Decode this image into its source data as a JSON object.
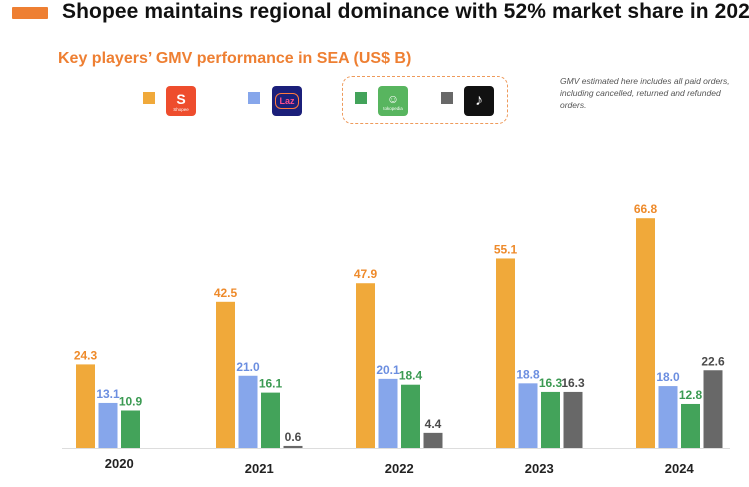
{
  "header": {
    "title": "Shopee maintains regional dominance with 52% market share in 202",
    "subtitle": "Key players’ GMV performance in SEA (US$ B)",
    "note": "GMV estimated here includes all paid orders, including cancelled, returned and refunded orders."
  },
  "legend": [
    {
      "name": "Shopee",
      "icon": "shopee-logo",
      "color": "#f0a93a",
      "logo_bg": "#ee4d2d",
      "logo_text": "S",
      "logo_sub": "Shopee"
    },
    {
      "name": "Lazada",
      "icon": "lazada-logo",
      "color": "#86a6eb",
      "logo_bg": "#1b1f7a",
      "logo_text": "Laz",
      "logo_sub": ""
    },
    {
      "name": "Tokopedia",
      "icon": "tokopedia-logo",
      "color": "#43a35a",
      "logo_bg": "#58b55f",
      "logo_text": "☺",
      "logo_sub": "tokopedia"
    },
    {
      "name": "TikTok Shop",
      "icon": "tiktok-logo",
      "color": "#686868",
      "logo_bg": "#111111",
      "logo_text": "♪",
      "logo_sub": ""
    }
  ],
  "chart_data": {
    "type": "bar",
    "title": "Key players’ GMV performance in SEA (US$ B)",
    "xlabel": "",
    "ylabel": "",
    "categories": [
      "2020",
      "2021",
      "2022",
      "2023",
      "2024"
    ],
    "ylim": [
      0,
      75
    ],
    "grid": false,
    "series": [
      {
        "name": "Shopee",
        "color": "#f0a93a",
        "label_color": "#ee8a2a",
        "values": [
          24.3,
          42.5,
          47.9,
          55.1,
          66.8
        ],
        "labels": [
          "24.3",
          "42.5",
          "47.9",
          "55.1",
          "66.8"
        ]
      },
      {
        "name": "Lazada",
        "color": "#86a6eb",
        "label_color": "#6b8ee0",
        "values": [
          13.1,
          21.0,
          20.1,
          18.8,
          18.0
        ],
        "labels": [
          "13.1",
          "21.0",
          "20.1",
          "18.8",
          "18.0"
        ]
      },
      {
        "name": "Tokopedia",
        "color": "#43a35a",
        "label_color": "#3b9a52",
        "values": [
          10.9,
          16.1,
          18.4,
          16.3,
          12.8
        ],
        "labels": [
          "10.9",
          "16.1",
          "18.4",
          "16.3",
          "12.8"
        ]
      },
      {
        "name": "TikTok Shop",
        "color": "#686868",
        "label_color": "#4a4a4a",
        "values": [
          null,
          0.6,
          4.4,
          16.3,
          22.6
        ],
        "labels": [
          "",
          "0.6",
          "4.4",
          "16.3",
          "22.6"
        ]
      }
    ]
  }
}
